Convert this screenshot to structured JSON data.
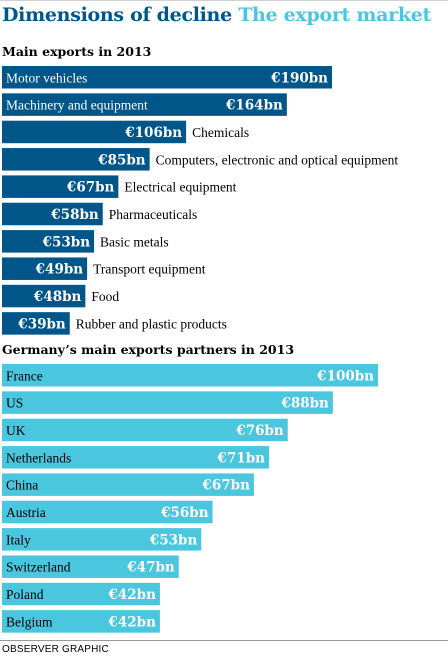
{
  "header": {
    "title_part1": "Dimensions of decline",
    "title_part2": "The export market"
  },
  "footer": {
    "credit": "OBSERVER GRAPHIC"
  },
  "colors": {
    "dark_bar": "#005689",
    "light_bar": "#4bc6df",
    "title_dark": "#005689",
    "title_light": "#4bc6df"
  },
  "chart_data": [
    {
      "type": "bar",
      "orientation": "horizontal",
      "title": "Main exports in 2013",
      "categories": [
        "Motor vehicles",
        "Machinery and equipment",
        "Chemicals",
        "Computers, electronic and optical equipment",
        "Electrical equipment",
        "Pharmaceuticals",
        "Basic metals",
        "Transport equipment",
        "Food",
        "Rubber and plastic products"
      ],
      "values": [
        190,
        164,
        106,
        85,
        67,
        58,
        53,
        49,
        48,
        39
      ],
      "data_labels": [
        "€190bn",
        "€164bn",
        "€106bn",
        "€85bn",
        "€67bn",
        "€58bn",
        "€53bn",
        "€49bn",
        "€48bn",
        "€39bn"
      ],
      "unit": "€bn",
      "grid": false
    },
    {
      "type": "bar",
      "orientation": "horizontal",
      "title": "Germany’s main exports partners in 2013",
      "categories": [
        "France",
        "US",
        "UK",
        "Netherlands",
        "China",
        "Austria",
        "Italy",
        "Switzerland",
        "Poland",
        "Belgium"
      ],
      "values": [
        100,
        88,
        76,
        71,
        67,
        56,
        53,
        47,
        42,
        42
      ],
      "data_labels": [
        "€100bn",
        "€88bn",
        "€76bn",
        "€71bn",
        "€67bn",
        "€56bn",
        "€53bn",
        "€47bn",
        "€42bn",
        "€42bn"
      ],
      "unit": "€bn",
      "grid": false
    }
  ]
}
